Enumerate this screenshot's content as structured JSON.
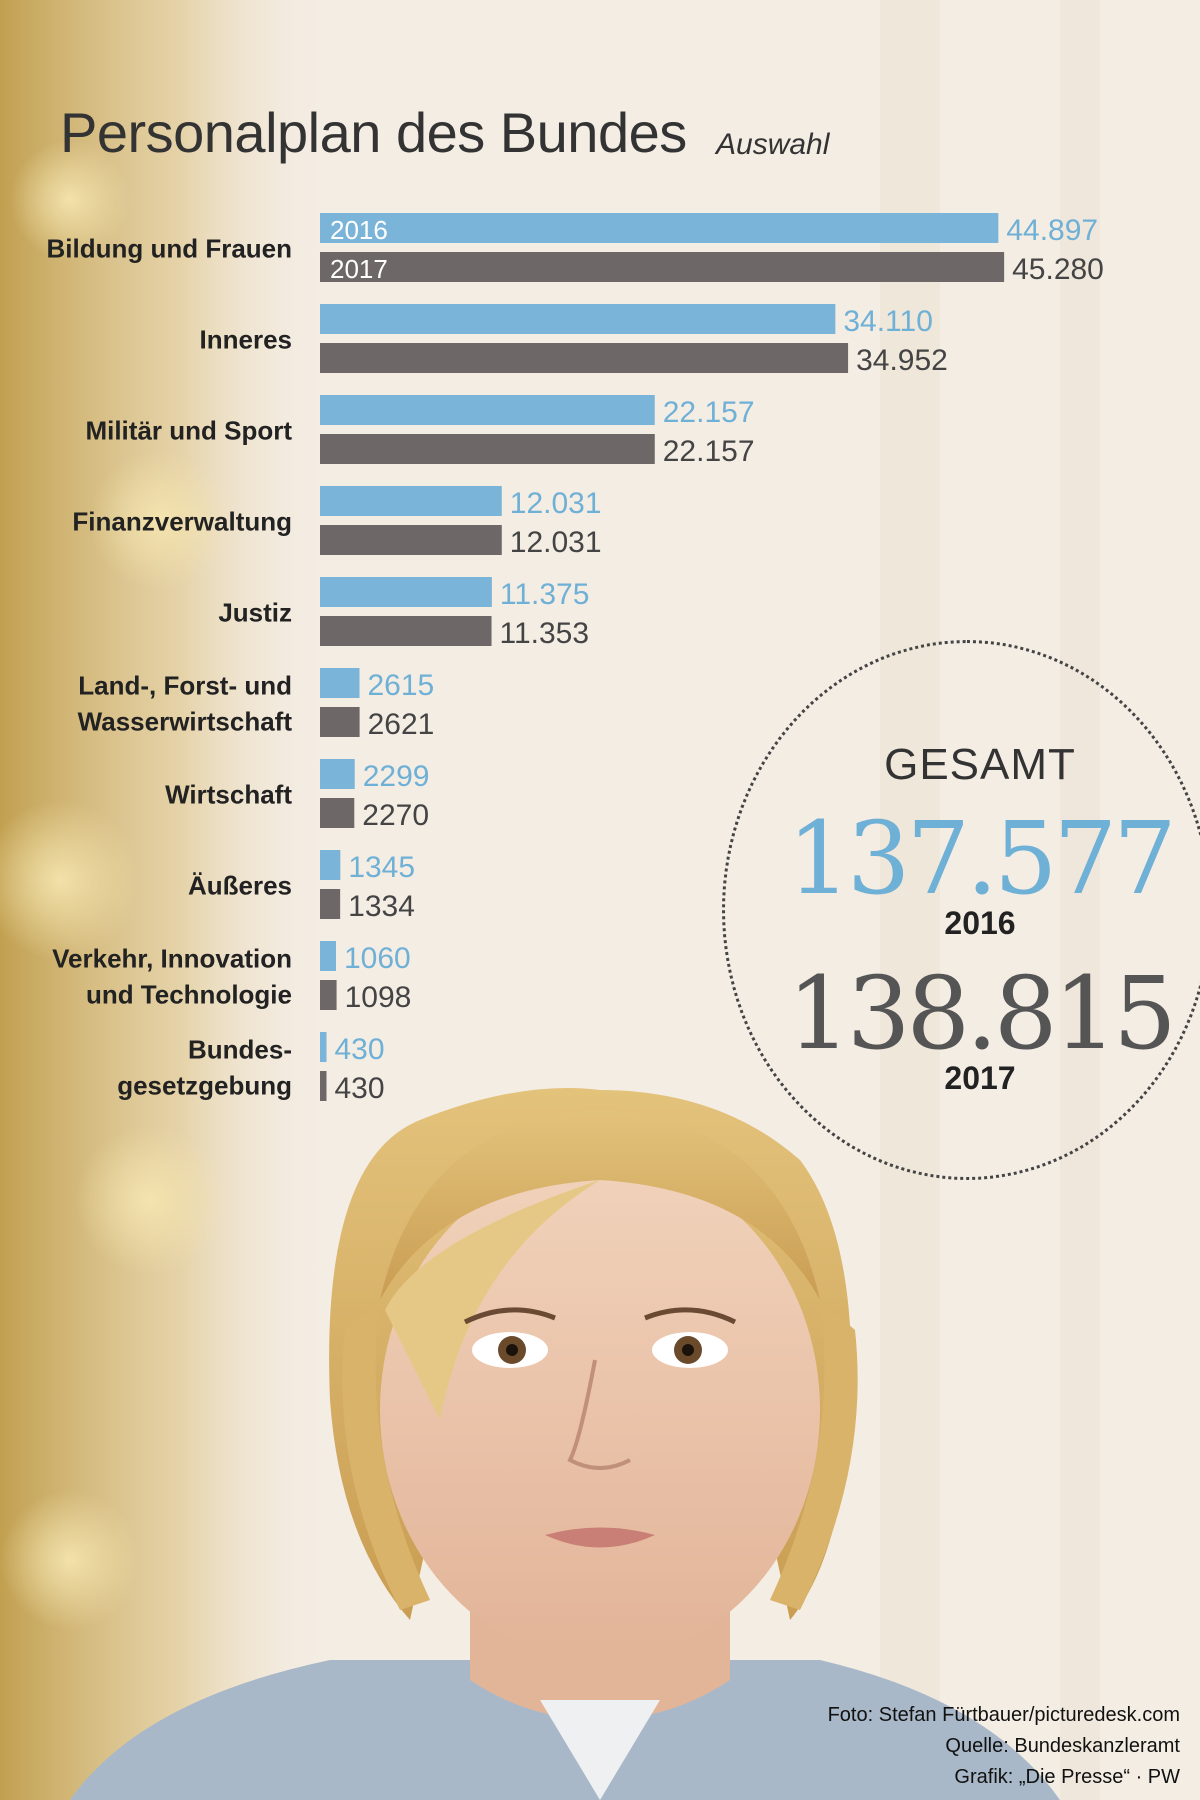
{
  "title": "Personalplan des Bundes",
  "subtitle": "Auswahl",
  "chart_data": {
    "type": "bar",
    "orientation": "horizontal",
    "categories": [
      [
        "Bildung und Frauen"
      ],
      [
        "Inneres"
      ],
      [
        "Militär und Sport"
      ],
      [
        "Finanzverwaltung"
      ],
      [
        "Justiz"
      ],
      [
        "Land-, Forst- und",
        "Wasserwirtschaft"
      ],
      [
        "Wirtschaft"
      ],
      [
        "Äußeres"
      ],
      [
        "Verkehr, Innovation",
        "und Technologie"
      ],
      [
        "Bundes-",
        "gesetzgebung"
      ]
    ],
    "series": [
      {
        "name": "2016",
        "color": "#7ab4d8",
        "values": [
          44897,
          34110,
          22157,
          12031,
          11375,
          2615,
          2299,
          1345,
          1060,
          430
        ],
        "labels": [
          "44.897",
          "34.110",
          "22.157",
          "12.031",
          "11.375",
          "2615",
          "2299",
          "1345",
          "1060",
          "430"
        ]
      },
      {
        "name": "2017",
        "color": "#6e6768",
        "values": [
          45280,
          34952,
          22157,
          12031,
          11353,
          2621,
          2270,
          1334,
          1098,
          430
        ],
        "labels": [
          "45.280",
          "34.952",
          "22.157",
          "12.031",
          "11.353",
          "2621",
          "2270",
          "1334",
          "1098",
          "430"
        ]
      }
    ],
    "xlim": [
      0,
      46000
    ],
    "grid": false,
    "legend": "inside first bars"
  },
  "totals": {
    "heading": "GESAMT",
    "value_2016": "137.577",
    "year_2016": "2016",
    "value_2017": "138.815",
    "year_2017": "2017"
  },
  "credits": {
    "photo": "Foto: Stefan Fürtbauer/picturedesk.com",
    "source": "Quelle: Bundeskanzleramt",
    "graphic": "Grafik: „Die Presse“ · PW"
  },
  "photo": {
    "description_icon": "portrait-photo",
    "skin": "#e8c2a6",
    "hair": "#d9b36a",
    "jacket": "#a9b8c8",
    "background_gold": "#c9a24a"
  }
}
